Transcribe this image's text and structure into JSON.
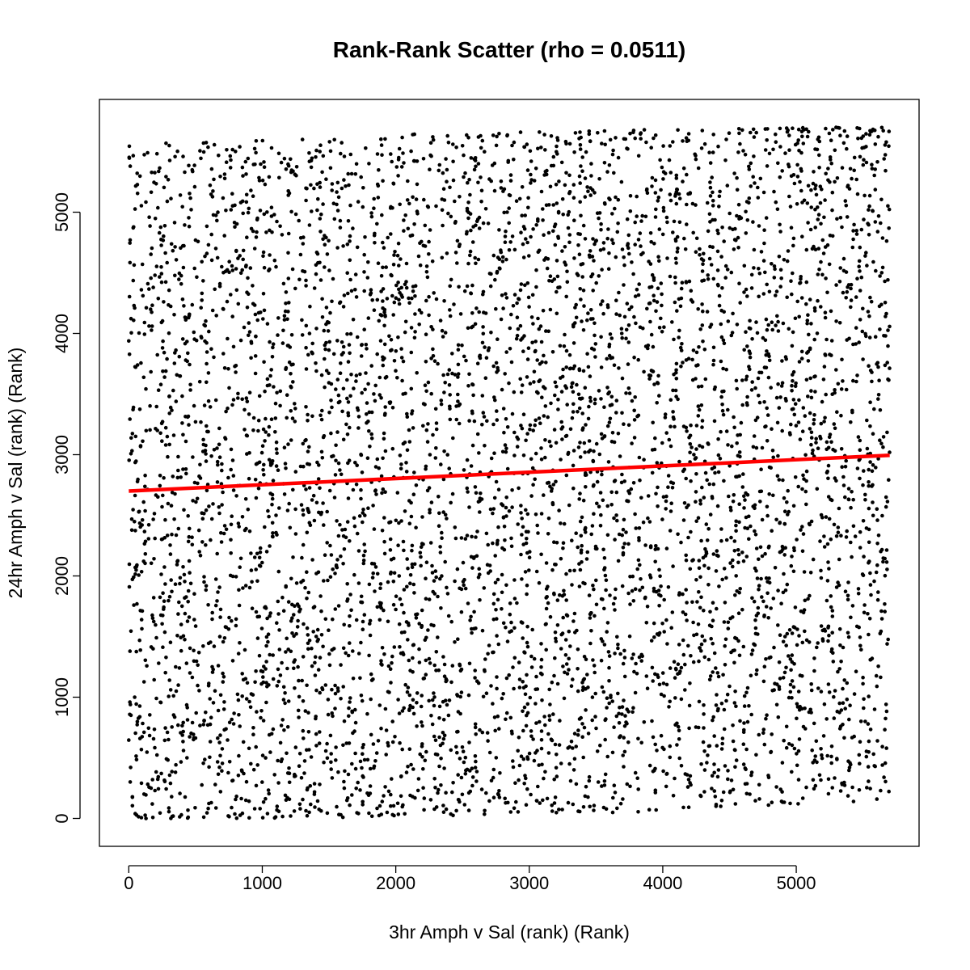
{
  "chart_data": {
    "type": "scatter",
    "title": "Rank-Rank Scatter (rho = 0.0511)",
    "xlabel": "3hr Amph v Sal (rank) (Rank)",
    "ylabel": "24hr Amph v Sal (rank) (Rank)",
    "xlim": [
      -220,
      5920
    ],
    "ylim": [
      -230,
      5930
    ],
    "x_ticks": [
      0,
      1000,
      2000,
      3000,
      4000,
      5000
    ],
    "y_ticks": [
      0,
      1000,
      2000,
      3000,
      4000,
      5000
    ],
    "x_tick_labels": [
      "0",
      "1000",
      "2000",
      "3000",
      "4000",
      "5000"
    ],
    "y_tick_labels": [
      "0",
      "1000",
      "2000",
      "3000",
      "4000",
      "5000"
    ],
    "n_points": 5700,
    "rank_max": 5700,
    "point_color": "#000000",
    "fit_line": {
      "color": "#ff0000",
      "x": [
        0,
        5700
      ],
      "y": [
        2700,
        2995
      ]
    },
    "grid": false,
    "legend": "none"
  }
}
